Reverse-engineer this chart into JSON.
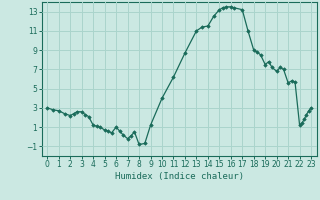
{
  "title": "",
  "xlabel": "Humidex (Indice chaleur)",
  "ylabel": "",
  "background_color": "#cbe8e2",
  "plot_bg_color": "#cbe8e2",
  "line_color": "#1a6b5a",
  "marker_color": "#1a6b5a",
  "grid_color": "#aad4cc",
  "text_color": "#1a6b5a",
  "xlim": [
    -0.5,
    23.5
  ],
  "ylim": [
    -2,
    14
  ],
  "yticks": [
    -1,
    1,
    3,
    5,
    7,
    9,
    11,
    13
  ],
  "xticks": [
    0,
    1,
    2,
    3,
    4,
    5,
    6,
    7,
    8,
    9,
    10,
    11,
    12,
    13,
    14,
    15,
    16,
    17,
    18,
    19,
    20,
    21,
    22,
    23
  ],
  "x": [
    0,
    0.5,
    1,
    1.5,
    2,
    2.3,
    2.6,
    3,
    3.3,
    3.6,
    4,
    4.3,
    4.6,
    5,
    5.3,
    5.6,
    6,
    6.3,
    6.6,
    7,
    7.3,
    7.6,
    8,
    8.5,
    9,
    10,
    11,
    12,
    13,
    13.5,
    14,
    14.5,
    15,
    15.3,
    15.6,
    16,
    16.3,
    17,
    17.5,
    18,
    18.3,
    18.6,
    19,
    19.3,
    19.6,
    20,
    20.3,
    20.6,
    21,
    21.3,
    21.6,
    22,
    22.2,
    22.4,
    22.6,
    22.8,
    23
  ],
  "y": [
    3,
    2.8,
    2.7,
    2.4,
    2.2,
    2.4,
    2.6,
    2.6,
    2.3,
    2.1,
    1.2,
    1.1,
    1.0,
    0.7,
    0.6,
    0.4,
    1.0,
    0.6,
    0.2,
    -0.2,
    0.1,
    0.5,
    -0.8,
    -0.7,
    1.2,
    4.0,
    6.2,
    8.7,
    11.0,
    11.4,
    11.5,
    12.5,
    13.2,
    13.4,
    13.5,
    13.5,
    13.4,
    13.2,
    11.0,
    9.0,
    8.8,
    8.5,
    7.5,
    7.8,
    7.2,
    6.8,
    7.2,
    7.0,
    5.6,
    5.8,
    5.7,
    1.2,
    1.4,
    1.8,
    2.3,
    2.7,
    3.0
  ]
}
